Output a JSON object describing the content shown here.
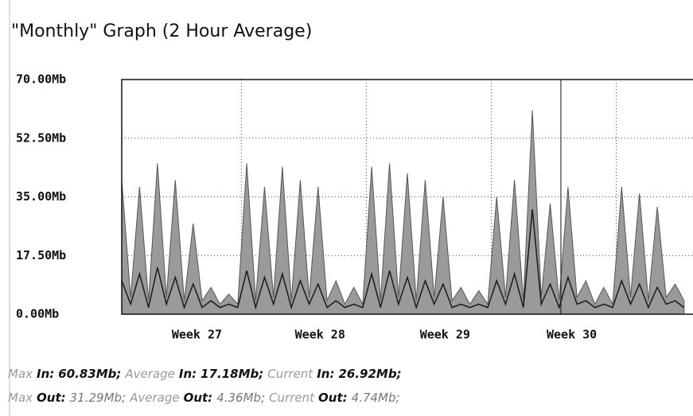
{
  "chart_data": {
    "type": "line",
    "title": "\"Monthly\" Graph (2 Hour Average)",
    "xlim": [
      0,
      32
    ],
    "xgrid": [
      6.7,
      13.7,
      20.7,
      27.7
    ],
    "xmarker": 24.6,
    "xticks": [
      {
        "value": 2.8,
        "label": "Week 27"
      },
      {
        "value": 9.7,
        "label": "Week 28"
      },
      {
        "value": 16.7,
        "label": "Week 29"
      },
      {
        "value": 23.8,
        "label": "Week 30"
      }
    ],
    "ylim": [
      0,
      70
    ],
    "yticks": [
      {
        "value": 0,
        "label": "0.00Mb"
      },
      {
        "value": 17.5,
        "label": "17.50Mb"
      },
      {
        "value": 35,
        "label": "35.00Mb"
      },
      {
        "value": 52.5,
        "label": "52.50Mb"
      },
      {
        "value": 70,
        "label": "70.00Mb"
      }
    ],
    "grid": true,
    "x": [
      0,
      0.5,
      1,
      1.5,
      2,
      2.5,
      3,
      3.5,
      4,
      4.5,
      5,
      5.5,
      6,
      6.5,
      7,
      7.5,
      8,
      8.5,
      9,
      9.5,
      10,
      10.5,
      11,
      11.5,
      12,
      12.5,
      13,
      13.5,
      14,
      14.5,
      15,
      15.5,
      16,
      16.5,
      17,
      17.5,
      18,
      18.5,
      19,
      19.5,
      20,
      20.5,
      21,
      21.5,
      22,
      22.5,
      23,
      23.5,
      24,
      24.5,
      25,
      25.5,
      26,
      26.5,
      27,
      27.5,
      28,
      28.5,
      29,
      29.5,
      30,
      30.5,
      31,
      31.5
    ],
    "series": [
      {
        "name": "In",
        "color": "#9a9a9a",
        "values": [
          40,
          5,
          38,
          4,
          45,
          5,
          40,
          4,
          27,
          4,
          8,
          3,
          6,
          3,
          45,
          4,
          38,
          5,
          44,
          4,
          40,
          5,
          38,
          4,
          10,
          3,
          8,
          3,
          44,
          4,
          45,
          5,
          42,
          4,
          40,
          5,
          35,
          4,
          8,
          3,
          7,
          3,
          35,
          5,
          40,
          4,
          60.83,
          5,
          33,
          4,
          38,
          5,
          10,
          3,
          8,
          3,
          38,
          5,
          36,
          4,
          32,
          5,
          9,
          4
        ]
      },
      {
        "name": "Out",
        "color": "#1a1a1a",
        "values": [
          10,
          3,
          12,
          2,
          14,
          3,
          11,
          2,
          9,
          2,
          4,
          2,
          3,
          2,
          13,
          2,
          11,
          3,
          12,
          2,
          10,
          3,
          9,
          2,
          4,
          2,
          3,
          2,
          12,
          2,
          13,
          3,
          11,
          2,
          10,
          3,
          9,
          2,
          3,
          2,
          3,
          2,
          10,
          3,
          12,
          2,
          31.29,
          3,
          9,
          2,
          11,
          3,
          4,
          2,
          3,
          2,
          10,
          3,
          9,
          2,
          8,
          3,
          4,
          2
        ]
      }
    ],
    "stats": [
      [
        "Max",
        "In:",
        "60.83Mb;",
        "Average",
        "In:",
        "17.18Mb;",
        "Current",
        "In:",
        "26.92Mb;"
      ],
      [
        "Max",
        "Out:",
        "31.29Mb;",
        "Average",
        "Out:",
        "4.36Mb;",
        "Current",
        "Out:",
        "4.74Mb;"
      ]
    ]
  }
}
